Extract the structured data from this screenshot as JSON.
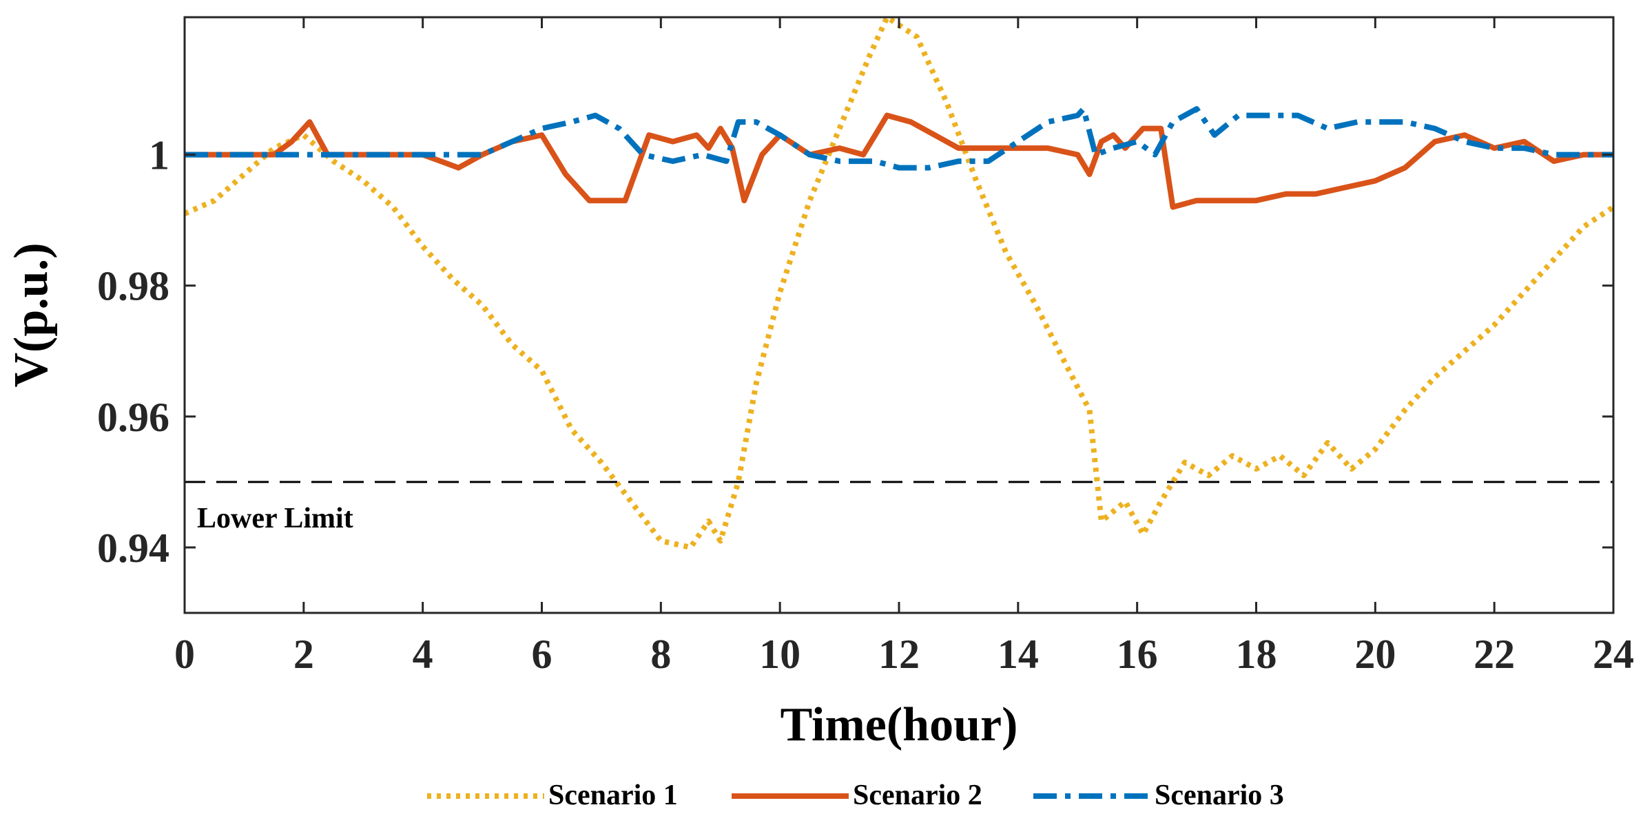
{
  "chart_data": {
    "type": "line",
    "title": "",
    "xlabel": "Time(hour)",
    "ylabel": "V(p.u.)",
    "xlim": [
      0,
      24
    ],
    "ylim": [
      0.93,
      1.021
    ],
    "xticks": [
      0,
      2,
      4,
      6,
      8,
      10,
      12,
      14,
      16,
      18,
      20,
      22,
      24
    ],
    "xtick_labels": [
      "0",
      "2",
      "4",
      "6",
      "8",
      "10",
      "12",
      "14",
      "16",
      "18",
      "20",
      "22",
      "24"
    ],
    "yticks": [
      0.94,
      0.96,
      0.98,
      1.0
    ],
    "ytick_labels": [
      "0.94",
      "0.96",
      "0.98",
      "1"
    ],
    "grid": false,
    "legend_position": "bottom-center",
    "reference_line": {
      "label": "Lower Limit",
      "value": 0.95,
      "color": "#000000"
    },
    "series": [
      {
        "name": "Scenario 1",
        "color": "#EDB120",
        "style": "dotted",
        "x": [
          0,
          0.5,
          1,
          1.5,
          2,
          2.5,
          3,
          3.5,
          4,
          4.5,
          5,
          5.5,
          6,
          6.5,
          7,
          7.5,
          8,
          8.5,
          8.8,
          9,
          9.3,
          9.6,
          10,
          10.5,
          11,
          11.5,
          11.8,
          12.3,
          12.8,
          13.3,
          13.8,
          14.3,
          14.8,
          15.2,
          15.4,
          15.8,
          16.1,
          16.4,
          16.8,
          17.2,
          17.6,
          18,
          18.4,
          18.8,
          19.2,
          19.6,
          20,
          20.5,
          21,
          21.5,
          22,
          22.5,
          23,
          23.5,
          24
        ],
        "values": [
          0.991,
          0.993,
          0.997,
          1.001,
          1.003,
          0.999,
          0.996,
          0.992,
          0.986,
          0.981,
          0.977,
          0.971,
          0.967,
          0.958,
          0.953,
          0.947,
          0.941,
          0.94,
          0.944,
          0.941,
          0.95,
          0.965,
          0.979,
          0.993,
          1.004,
          1.015,
          1.021,
          1.018,
          1.008,
          0.996,
          0.985,
          0.977,
          0.968,
          0.961,
          0.944,
          0.947,
          0.942,
          0.947,
          0.953,
          0.951,
          0.954,
          0.952,
          0.954,
          0.951,
          0.956,
          0.952,
          0.955,
          0.961,
          0.966,
          0.97,
          0.974,
          0.979,
          0.984,
          0.989,
          0.992
        ]
      },
      {
        "name": "Scenario 2",
        "color": "#D95319",
        "style": "solid",
        "x": [
          0,
          0.5,
          1,
          1.5,
          1.8,
          2.1,
          2.4,
          3,
          3.5,
          4,
          4.6,
          5,
          5.5,
          6,
          6.4,
          6.8,
          7.2,
          7.4,
          7.8,
          8.2,
          8.6,
          8.8,
          9,
          9.2,
          9.4,
          9.7,
          10,
          10.5,
          11,
          11.4,
          11.8,
          12.2,
          12.6,
          13,
          13.5,
          14,
          14.5,
          15,
          15.2,
          15.4,
          15.6,
          15.8,
          16.1,
          16.4,
          16.6,
          17,
          17.5,
          18,
          18.5,
          19,
          19.5,
          20,
          20.5,
          21,
          21.5,
          22,
          22.5,
          23,
          23.5,
          24
        ],
        "values": [
          1.0,
          1.0,
          1.0,
          1.0,
          1.002,
          1.005,
          1.0,
          1.0,
          1.0,
          1.0,
          0.998,
          1.0,
          1.002,
          1.003,
          0.997,
          0.993,
          0.993,
          0.993,
          1.003,
          1.002,
          1.003,
          1.001,
          1.004,
          1.001,
          0.993,
          1.0,
          1.003,
          1.0,
          1.001,
          1.0,
          1.006,
          1.005,
          1.003,
          1.001,
          1.001,
          1.001,
          1.001,
          1.0,
          0.997,
          1.002,
          1.003,
          1.001,
          1.004,
          1.004,
          0.992,
          0.993,
          0.993,
          0.993,
          0.994,
          0.994,
          0.995,
          0.996,
          0.998,
          1.002,
          1.003,
          1.001,
          1.002,
          0.999,
          1.0,
          1.0
        ]
      },
      {
        "name": "Scenario 3",
        "color": "#0072BD",
        "style": "dashdot",
        "x": [
          0,
          1,
          2,
          3,
          4,
          5,
          5.5,
          6,
          6.5,
          6.9,
          7.3,
          7.7,
          8.2,
          8.7,
          9.1,
          9.3,
          9.6,
          10,
          10.5,
          11,
          11.6,
          12,
          12.5,
          13,
          13.5,
          14,
          14.5,
          15,
          15.1,
          15.3,
          15.6,
          16,
          16.3,
          16.6,
          17,
          17.3,
          17.7,
          18.2,
          18.7,
          19.2,
          19.7,
          20,
          20.5,
          21,
          21.5,
          22,
          22.5,
          23,
          24
        ],
        "values": [
          1.0,
          1.0,
          1.0,
          1.0,
          1.0,
          1.0,
          1.002,
          1.004,
          1.005,
          1.006,
          1.004,
          1.0,
          0.999,
          1.0,
          0.999,
          1.005,
          1.005,
          1.003,
          1.0,
          0.999,
          0.999,
          0.998,
          0.998,
          0.999,
          0.999,
          1.002,
          1.005,
          1.006,
          1.007,
          1.0,
          1.001,
          1.002,
          1.0,
          1.005,
          1.007,
          1.003,
          1.006,
          1.006,
          1.006,
          1.004,
          1.005,
          1.005,
          1.005,
          1.004,
          1.002,
          1.001,
          1.001,
          1.0,
          1.0
        ]
      }
    ]
  }
}
